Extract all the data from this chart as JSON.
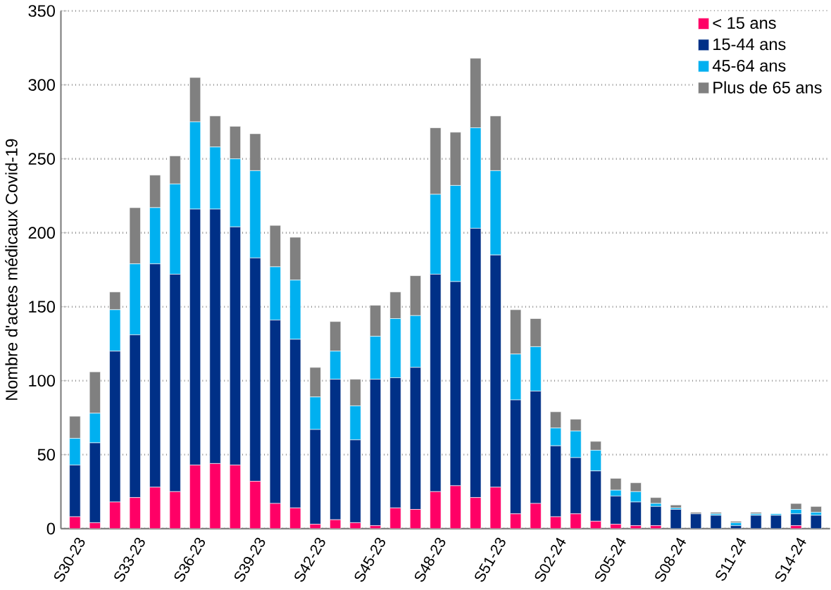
{
  "chart_data": {
    "type": "bar",
    "stacked": true,
    "ylabel": "Nombre d'actes médicaux Covid-19",
    "categories": [
      "S30-23",
      null,
      null,
      "S33-23",
      null,
      null,
      "S36-23",
      null,
      null,
      "S39-23",
      null,
      null,
      "S42-23",
      null,
      null,
      "S45-23",
      null,
      null,
      "S48-23",
      null,
      null,
      "S51-23",
      null,
      null,
      "S02-24",
      null,
      null,
      "S05-24",
      null,
      null,
      "S08-24",
      null,
      null,
      "S11-24",
      null,
      null,
      "S14-24",
      null
    ],
    "series": [
      {
        "name": "< 15 ans",
        "color": "#ff0066",
        "values": [
          8,
          4,
          18,
          21,
          28,
          25,
          43,
          44,
          43,
          32,
          17,
          14,
          3,
          6,
          4,
          2,
          14,
          13,
          25,
          29,
          21,
          28,
          10,
          17,
          8,
          10,
          5,
          3,
          2,
          2,
          0,
          0,
          0,
          0,
          0,
          0,
          2,
          0
        ]
      },
      {
        "name": "15-44 ans",
        "color": "#003087",
        "values": [
          35,
          54,
          102,
          110,
          151,
          147,
          173,
          172,
          161,
          151,
          124,
          114,
          64,
          95,
          56,
          99,
          88,
          96,
          147,
          138,
          182,
          157,
          77,
          76,
          48,
          38,
          34,
          19,
          16,
          13,
          13,
          10,
          9,
          2,
          9,
          9,
          8,
          9
        ]
      },
      {
        "name": "45-64 ans",
        "color": "#00b0f0",
        "values": [
          18,
          20,
          28,
          48,
          38,
          61,
          59,
          42,
          46,
          59,
          36,
          40,
          22,
          19,
          23,
          29,
          40,
          35,
          54,
          65,
          68,
          57,
          31,
          30,
          12,
          18,
          14,
          4,
          7,
          2,
          1,
          0,
          1,
          2,
          1,
          1,
          3,
          2
        ]
      },
      {
        "name": "Plus de 65 ans",
        "color": "#808080",
        "values": [
          15,
          28,
          12,
          38,
          22,
          19,
          30,
          21,
          22,
          25,
          28,
          29,
          20,
          20,
          18,
          21,
          18,
          27,
          45,
          36,
          47,
          37,
          30,
          19,
          11,
          8,
          6,
          8,
          6,
          4,
          2,
          1,
          1,
          1,
          1,
          0,
          4,
          4
        ]
      }
    ],
    "ylim": [
      0,
      350
    ],
    "yticks": [
      0,
      50,
      100,
      150,
      200,
      250,
      300,
      350
    ],
    "grid": "y",
    "legend": "top right"
  }
}
